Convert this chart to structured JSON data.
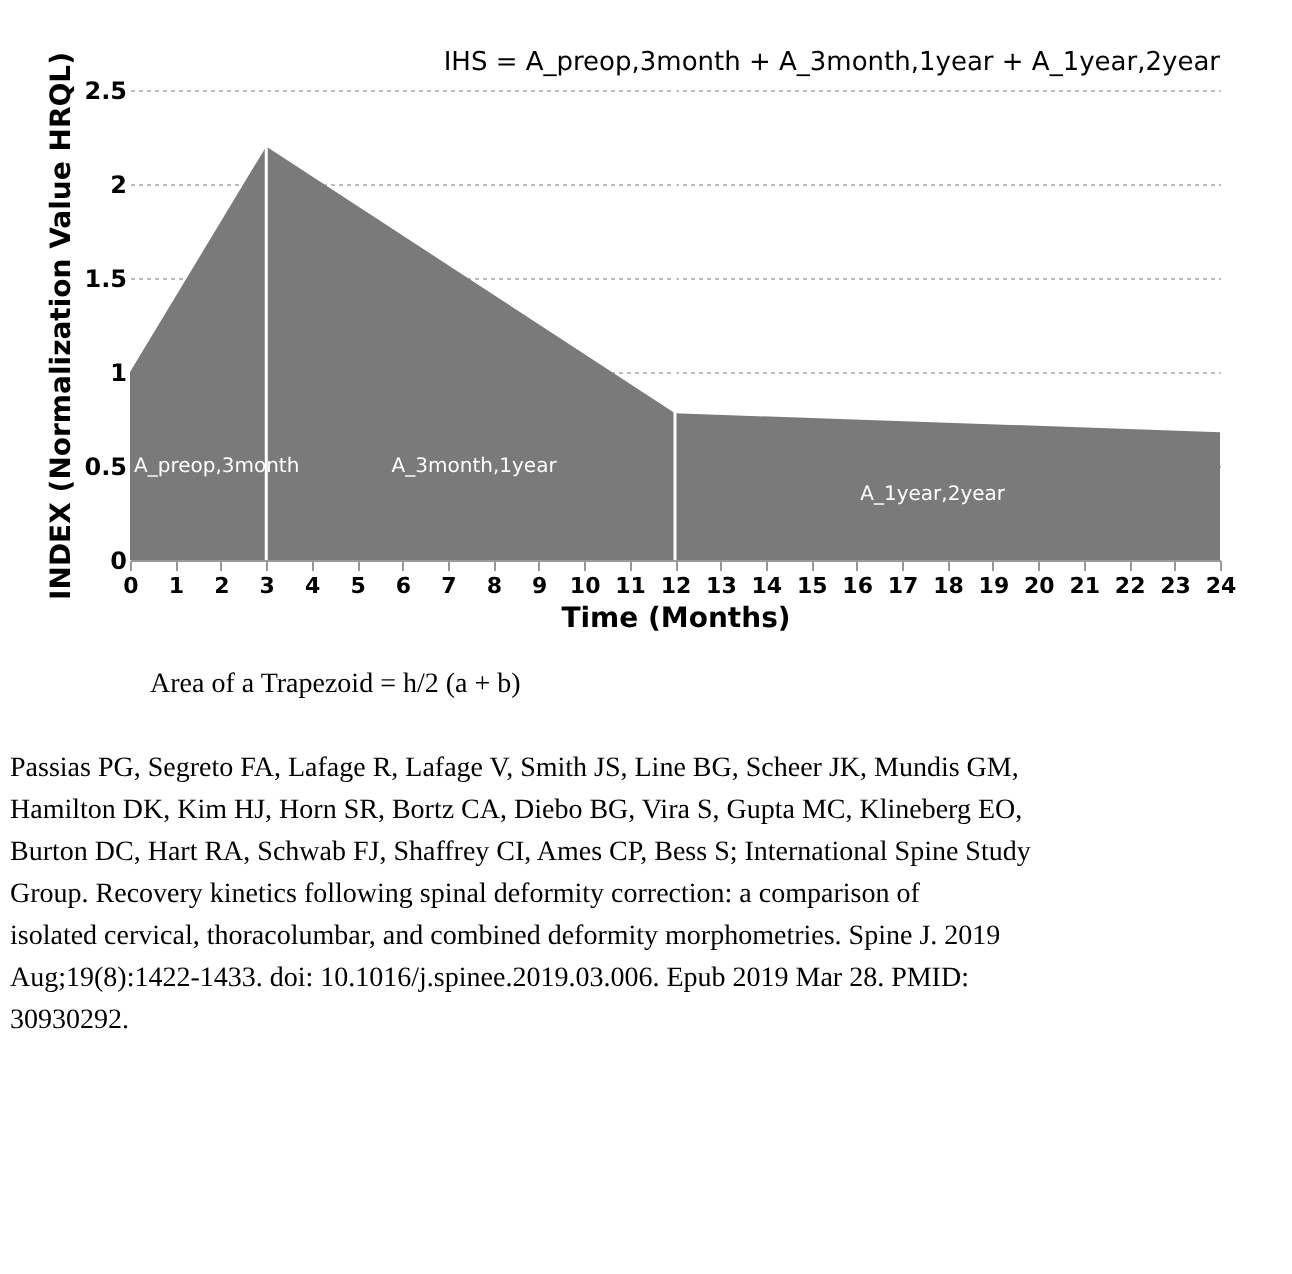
{
  "chart_data": {
    "type": "area",
    "xlabel": "Time (Months)",
    "ylabel": "INDEX (Normalization Value HRQL)",
    "x": [
      0,
      3,
      12,
      24
    ],
    "series": [
      {
        "color": "#7a7a7a",
        "values": [
          1.0,
          2.2,
          0.78,
          0.68
        ]
      }
    ],
    "xlim": [
      0,
      24
    ],
    "xticks": [
      0,
      1,
      2,
      3,
      4,
      5,
      6,
      7,
      8,
      9,
      10,
      11,
      12,
      13,
      14,
      15,
      16,
      17,
      18,
      19,
      20,
      21,
      22,
      23,
      24
    ],
    "ylim": [
      0,
      2.5
    ],
    "yticks": [
      0,
      0.5,
      1,
      1.5,
      2,
      2.5
    ],
    "grid": "y",
    "legend": false,
    "ref_lines": [
      {
        "axis": "x",
        "value": 3,
        "color": "#ffffff"
      },
      {
        "axis": "x",
        "value": 12,
        "color": "#ffffff"
      }
    ],
    "annotations": [
      "IHS = A_preop,3month + A_3month,1year + A_1year,2year",
      "A_preop,3month",
      "A_3month,1year",
      "A_1year,2year",
      "Area of a Trapezoid = h/2 (a + b)",
      "Passias PG, Segreto FA, Lafage R, Lafage V, Smith JS, Line BG, Scheer JK, Mundis GM, Hamilton DK, Kim HJ, Horn SR, Bortz CA, Diebo BG, Vira S, Gupta MC, Klineberg EO, Burton DC, Hart RA, Schwab FJ, Shaffrey CI, Ames CP, Bess S; International Spine Study Group. Recovery kinetics following spinal deformity correction: a comparison of isolated cervical, thoracolumbar, and combined deformity morphometries. Spine J. 2019 Aug;19(8):1422-1433. doi: 10.1016/j.spinee.2019.03.006. Epub 2019 Mar 28. PMID: 30930292."
    ]
  }
}
